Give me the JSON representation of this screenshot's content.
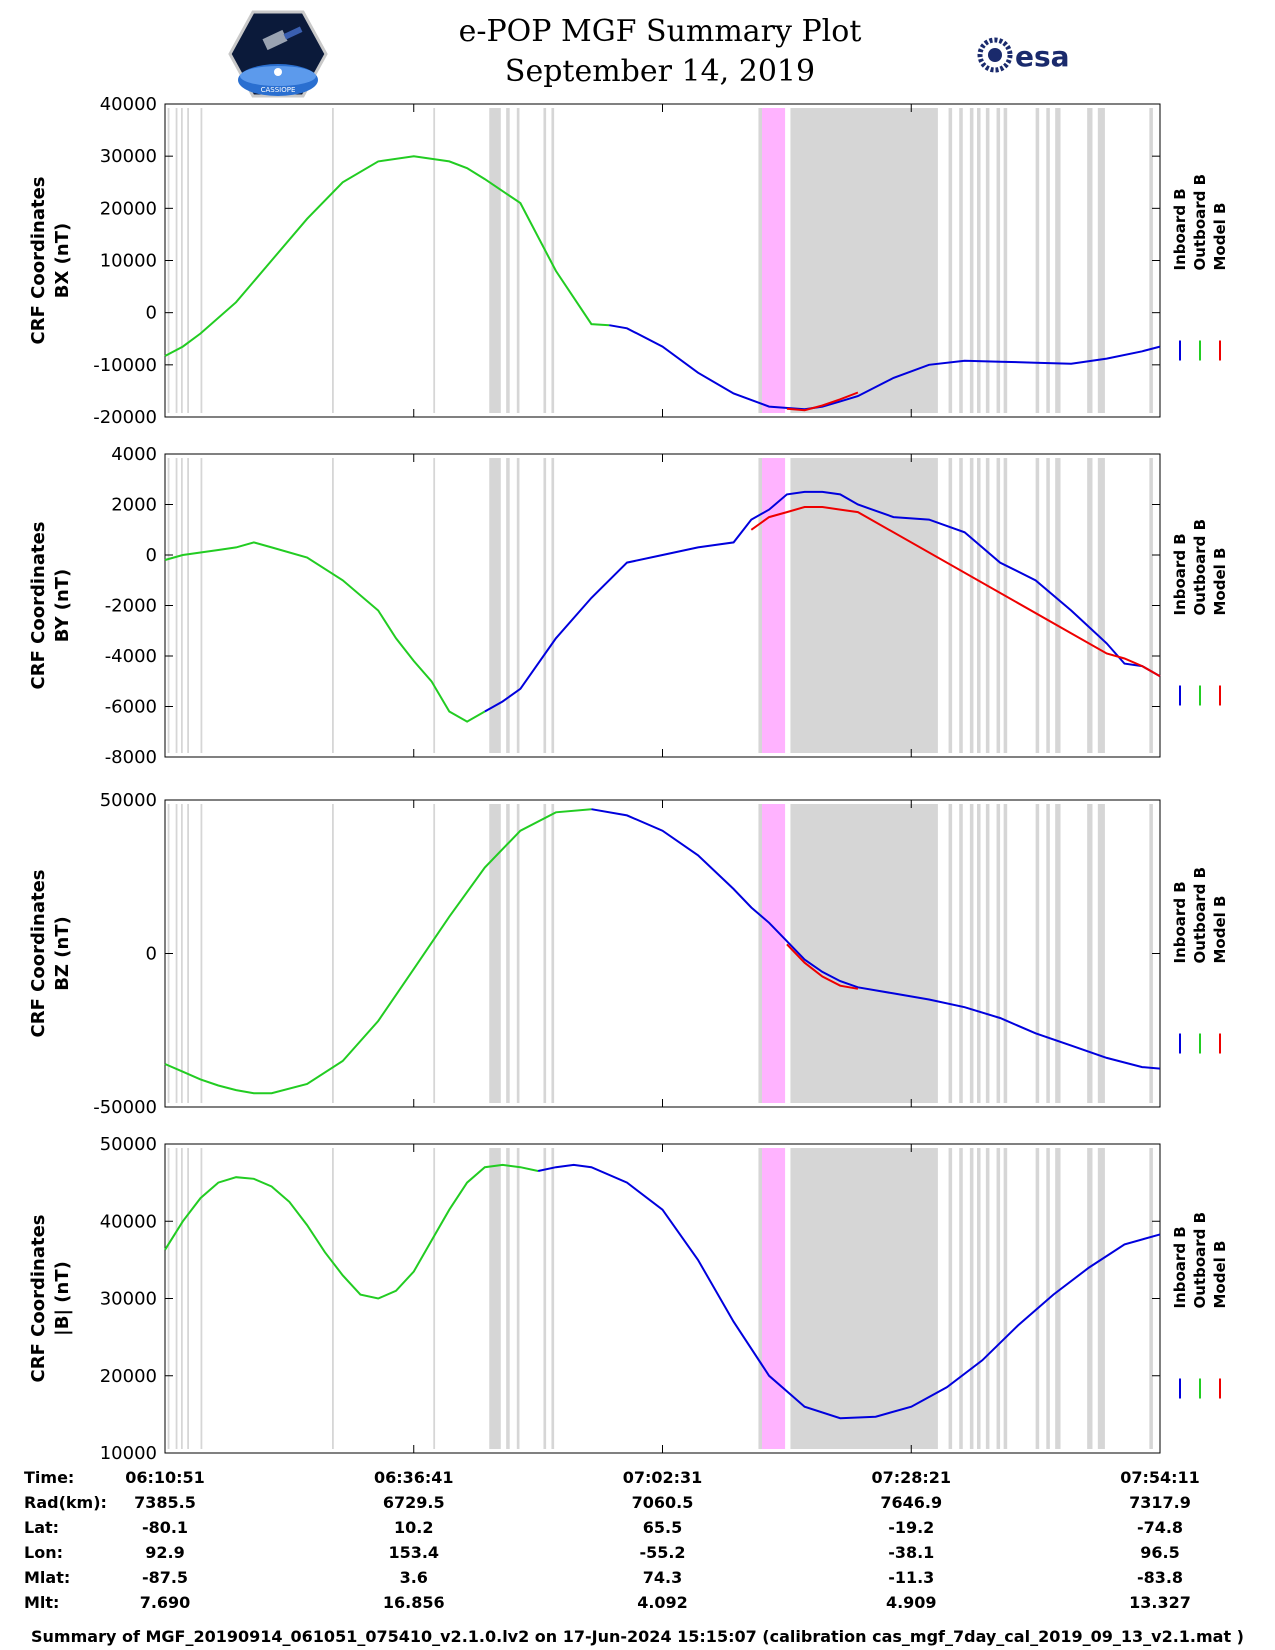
{
  "header": {
    "title": "e-POP MGF Summary Plot",
    "date": "September 14, 2019",
    "left_logo_text": "CASSIOPE",
    "right_logo_text": "esa"
  },
  "legend": [
    "Inboard B",
    "Outboard B",
    "Model B"
  ],
  "colors": {
    "inboard": "#0000dd",
    "outboard": "#22cc22",
    "model": "#ee0000",
    "gap": "#d6d6d6",
    "highlight": "#ffb3ff"
  },
  "chart_data": [
    {
      "type": "line",
      "ylabel": [
        "CRF Coordinates",
        "BX (nT)"
      ],
      "ylim": [
        -20000,
        40000
      ],
      "yticks": [
        -20000,
        -10000,
        0,
        10000,
        20000,
        30000,
        40000
      ],
      "series": [
        {
          "name": "Outboard B",
          "color": "#22cc22",
          "x": [
            0,
            2,
            4,
            8,
            12,
            16,
            20,
            24,
            28,
            32,
            34,
            36,
            40,
            44,
            48,
            50
          ],
          "y": [
            -8300,
            -6500,
            -4000,
            2000,
            10000,
            18000,
            25000,
            29000,
            30000,
            29000,
            27700,
            25600,
            21000,
            8000,
            -2200,
            -2400
          ]
        },
        {
          "name": "Inboard B",
          "color": "#0000dd",
          "x": [
            50,
            52,
            56,
            60,
            64,
            68,
            72,
            74,
            76,
            78,
            82,
            86,
            90,
            94,
            98,
            102,
            106,
            110,
            112
          ],
          "y": [
            -2400,
            -3000,
            -6500,
            -11500,
            -15500,
            -18000,
            -18500,
            -18000,
            -17000,
            -16000,
            -12500,
            -10000,
            -9200,
            -9400,
            -9600,
            -9800,
            -8800,
            -7400,
            -6500
          ]
        },
        {
          "name": "Model B",
          "color": "#ee0000",
          "x": [
            70,
            72,
            74,
            76,
            78
          ],
          "y": [
            -18400,
            -18700,
            -17800,
            -16600,
            -15300
          ]
        }
      ]
    },
    {
      "type": "line",
      "ylabel": [
        "CRF Coordinates",
        "BY (nT)"
      ],
      "ylim": [
        -8000,
        4000
      ],
      "yticks": [
        -8000,
        -6000,
        -4000,
        -2000,
        0,
        2000,
        4000
      ],
      "series": [
        {
          "name": "Outboard B",
          "color": "#22cc22",
          "x": [
            0,
            2,
            4,
            6,
            8,
            10,
            12,
            16,
            20,
            24,
            26,
            28,
            30,
            32,
            34,
            36
          ],
          "y": [
            -200,
            0,
            100,
            200,
            300,
            500,
            300,
            -100,
            -1000,
            -2200,
            -3300,
            -4200,
            -5000,
            -6200,
            -6600,
            -6200
          ]
        },
        {
          "name": "Inboard B",
          "color": "#0000dd",
          "x": [
            36,
            38,
            40,
            44,
            48,
            52,
            56,
            60,
            62,
            64,
            66,
            68,
            70,
            72,
            74,
            76,
            78,
            82,
            86,
            90,
            94,
            98,
            102,
            106,
            108,
            110,
            112
          ],
          "y": [
            -6200,
            -5800,
            -5300,
            -3300,
            -1700,
            -300,
            0,
            300,
            400,
            500,
            1400,
            1800,
            2400,
            2500,
            2500,
            2400,
            2000,
            1500,
            1400,
            900,
            -300,
            -1000,
            -2200,
            -3500,
            -4300,
            -4400,
            -4800
          ]
        },
        {
          "name": "Model B",
          "color": "#ee0000",
          "x": [
            66,
            68,
            70,
            72,
            74,
            76,
            78,
            106,
            108,
            110,
            112
          ],
          "y": [
            1000,
            1500,
            1700,
            1900,
            1900,
            1800,
            1700,
            -3900,
            -4100,
            -4400,
            -4800
          ]
        }
      ]
    },
    {
      "type": "line",
      "ylabel": [
        "CRF Coordinates",
        "BZ (nT)"
      ],
      "ylim": [
        -50000,
        50000
      ],
      "yticks": [
        -50000,
        0,
        50000
      ],
      "series": [
        {
          "name": "Outboard B",
          "color": "#22cc22",
          "x": [
            0,
            2,
            4,
            6,
            8,
            10,
            12,
            16,
            20,
            24,
            28,
            32,
            36,
            40,
            44,
            48
          ],
          "y": [
            -36000,
            -38500,
            -41000,
            -43000,
            -44500,
            -45500,
            -45500,
            -42500,
            -35000,
            -22000,
            -5000,
            12000,
            28000,
            40000,
            46000,
            47000
          ]
        },
        {
          "name": "Inboard B",
          "color": "#0000dd",
          "x": [
            48,
            52,
            56,
            60,
            64,
            66,
            68,
            70,
            72,
            74,
            76,
            78,
            82,
            86,
            90,
            94,
            98,
            102,
            106,
            110,
            112
          ],
          "y": [
            47000,
            45000,
            40000,
            32000,
            21000,
            15000,
            10000,
            4000,
            -2000,
            -6000,
            -9000,
            -11000,
            -13000,
            -15000,
            -17500,
            -21000,
            -26000,
            -30000,
            -34000,
            -37000,
            -37500
          ]
        },
        {
          "name": "Model B",
          "color": "#ee0000",
          "x": [
            70,
            72,
            74,
            76,
            78
          ],
          "y": [
            3000,
            -3000,
            -7500,
            -10500,
            -11500
          ]
        }
      ]
    },
    {
      "type": "line",
      "ylabel": [
        "CRF Coordinates",
        "|B| (nT)"
      ],
      "ylim": [
        10000,
        50000
      ],
      "yticks": [
        10000,
        20000,
        30000,
        40000,
        50000
      ],
      "series": [
        {
          "name": "Outboard B",
          "color": "#22cc22",
          "x": [
            0,
            2,
            4,
            6,
            8,
            10,
            12,
            14,
            16,
            18,
            20,
            22,
            24,
            26,
            28,
            30,
            32,
            34,
            36,
            38,
            40,
            42
          ],
          "y": [
            36300,
            40000,
            43000,
            45000,
            45700,
            45500,
            44500,
            42500,
            39500,
            36000,
            33000,
            30500,
            30000,
            31000,
            33500,
            37500,
            41500,
            45000,
            47000,
            47300,
            47000,
            46500
          ]
        },
        {
          "name": "Inboard B",
          "color": "#0000dd",
          "x": [
            42,
            44,
            46,
            48,
            52,
            56,
            60,
            64,
            68,
            72,
            76,
            80,
            84,
            88,
            92,
            96,
            100,
            104,
            108,
            112
          ],
          "y": [
            46500,
            47000,
            47300,
            47000,
            45000,
            41500,
            35000,
            27000,
            20000,
            16000,
            14500,
            14700,
            16000,
            18500,
            22000,
            26500,
            30500,
            34000,
            37000,
            38300
          ]
        }
      ]
    }
  ],
  "x_axis": {
    "xlim": [
      0,
      112
    ],
    "tick_positions": [
      0,
      28,
      56,
      84,
      112
    ]
  },
  "gap_bands": [
    [
      0.3,
      0.5
    ],
    [
      1.2,
      1.4
    ],
    [
      1.8,
      2.0
    ],
    [
      2.5,
      2.7
    ],
    [
      4.0,
      4.2
    ],
    [
      18.8,
      19.0
    ],
    [
      30.2,
      30.4
    ],
    [
      36.5,
      37.8
    ],
    [
      38.4,
      38.8
    ],
    [
      39.6,
      39.9
    ],
    [
      42.6,
      42.9
    ],
    [
      43.5,
      43.8
    ],
    [
      66.8,
      67.2
    ],
    [
      68.6,
      69.2
    ],
    [
      70.4,
      87.0
    ],
    [
      88.2,
      88.6
    ],
    [
      89.4,
      89.8
    ],
    [
      90.6,
      91.0
    ],
    [
      91.4,
      91.8
    ],
    [
      92.4,
      92.8
    ],
    [
      93.6,
      94.0
    ],
    [
      94.4,
      94.8
    ],
    [
      98.0,
      98.4
    ],
    [
      99.2,
      99.6
    ],
    [
      100.2,
      100.8
    ],
    [
      103.8,
      104.4
    ],
    [
      105.0,
      105.8
    ],
    [
      110.8,
      111.2
    ]
  ],
  "highlight_bands": [
    [
      67.2,
      69.8
    ]
  ],
  "info_table": {
    "row_labels": [
      "Time:",
      "Rad(km):",
      "Lat:",
      "Lon:",
      "Mlat:",
      "Mlt:"
    ],
    "columns": [
      [
        "06:10:51",
        "7385.5",
        "-80.1",
        "92.9",
        "-87.5",
        "7.690"
      ],
      [
        "06:36:41",
        "6729.5",
        "10.2",
        "153.4",
        "3.6",
        "16.856"
      ],
      [
        "07:02:31",
        "7060.5",
        "65.5",
        "-55.2",
        "74.3",
        "4.092"
      ],
      [
        "07:28:21",
        "7646.9",
        "-19.2",
        "-38.1",
        "-11.3",
        "4.909"
      ],
      [
        "07:54:11",
        "7317.9",
        "-74.8",
        "96.5",
        "-83.8",
        "13.327"
      ]
    ]
  },
  "footer": "Summary of MGF_20190914_061051_075410_v2.1.0.lv2 on 17-Jun-2024 15:15:07 (calibration cas_mgf_7day_cal_2019_09_13_v2.1.mat )"
}
